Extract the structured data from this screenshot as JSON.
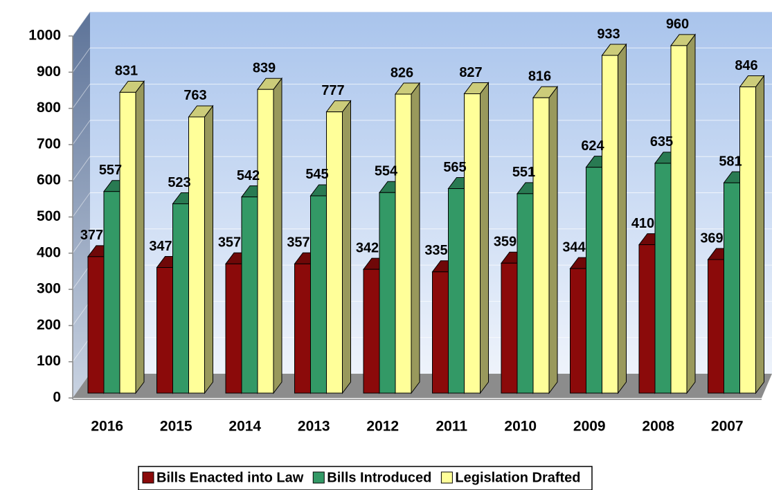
{
  "chart_data": {
    "type": "bar3d",
    "categories": [
      "2016",
      "2015",
      "2014",
      "2013",
      "2012",
      "2011",
      "2010",
      "2009",
      "2008",
      "2007"
    ],
    "series": [
      {
        "name": "Bills Enacted into Law",
        "color": "#8b0a0a",
        "values": [
          377,
          347,
          357,
          357,
          342,
          335,
          359,
          344,
          410,
          369
        ]
      },
      {
        "name": "Bills Introduced",
        "color": "#339966",
        "values": [
          557,
          523,
          542,
          545,
          554,
          565,
          551,
          624,
          635,
          581
        ]
      },
      {
        "name": "Legislation Drafted",
        "color": "#ffff99",
        "values": [
          831,
          763,
          839,
          777,
          826,
          827,
          816,
          933,
          960,
          846
        ]
      }
    ],
    "ylim": [
      0,
      1000
    ],
    "yticks": [
      0,
      100,
      200,
      300,
      400,
      500,
      600,
      700,
      800,
      900,
      1000
    ],
    "grid": true,
    "legend": "bottom"
  }
}
